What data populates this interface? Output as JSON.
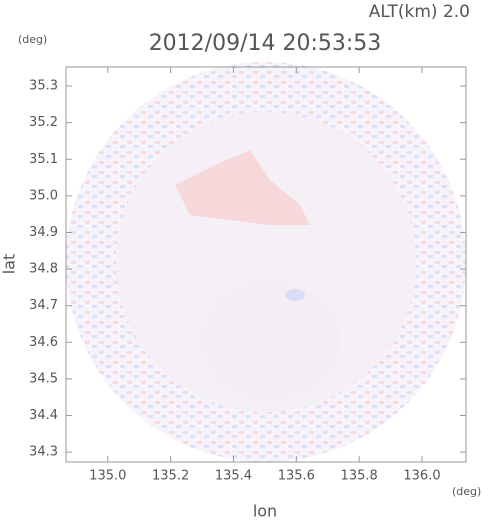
{
  "chart_data": {
    "type": "image",
    "title": "2012/09/14 20:53:53",
    "subtitle": "ALT(km) 2.0",
    "x_label": "lon",
    "y_label": "lat",
    "x_unit": "(deg)",
    "y_unit": "(deg)",
    "xlim": [
      134.867,
      136.14
    ],
    "ylim": [
      34.273,
      35.352
    ],
    "xticks": [
      {
        "value": 135,
        "label": "135.0"
      },
      135.2,
      135.4,
      135.6,
      135.8,
      {
        "value": 136,
        "label": "136.0"
      }
    ],
    "yticks": [
      34.3,
      34.4,
      34.5,
      34.6,
      34.7,
      34.8,
      34.9,
      {
        "value": 35,
        "label": "35.0"
      },
      35.1,
      35.2,
      35.3
    ]
  }
}
